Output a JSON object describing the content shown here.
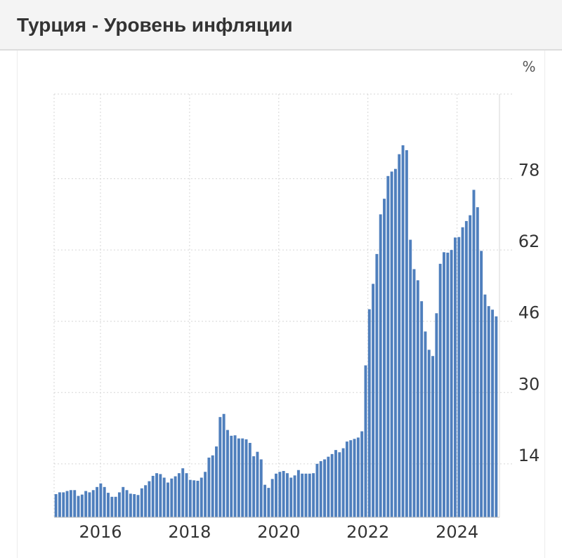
{
  "header": {
    "title": "Турция - Уровень инфляции"
  },
  "chart_data": {
    "type": "bar",
    "unit": "%",
    "color": "#4f7fbd",
    "ylim": [
      2,
      97
    ],
    "y_ticks": [
      14,
      30,
      46,
      62,
      78
    ],
    "x_tick_labels": [
      "2016",
      "2018",
      "2020",
      "2022",
      "2024"
    ],
    "x_tick_positions": [
      2016,
      2018,
      2020,
      2022,
      2024
    ],
    "x_range": [
      2014.96,
      2024.92
    ],
    "start": "2015-01",
    "grid": true,
    "values": [
      7.2,
      7.6,
      7.6,
      7.9,
      8.1,
      8.1,
      6.8,
      7.1,
      7.9,
      7.6,
      8.1,
      8.8,
      9.6,
      8.8,
      7.5,
      6.6,
      6.6,
      7.6,
      8.8,
      8.1,
      7.3,
      7.2,
      7.0,
      8.5,
      9.2,
      10.1,
      11.3,
      11.9,
      11.7,
      10.9,
      9.8,
      10.7,
      11.2,
      11.9,
      13.0,
      11.9,
      10.4,
      10.3,
      10.2,
      10.9,
      12.2,
      15.4,
      15.9,
      17.9,
      24.5,
      25.2,
      21.6,
      20.3,
      20.4,
      19.7,
      19.7,
      19.5,
      18.7,
      15.7,
      16.7,
      15.0,
      9.3,
      8.6,
      10.6,
      11.8,
      12.2,
      12.4,
      11.9,
      10.9,
      11.4,
      12.6,
      11.8,
      11.8,
      11.8,
      11.9,
      14.0,
      14.6,
      15.0,
      15.6,
      16.2,
      17.1,
      16.6,
      17.5,
      19.0,
      19.3,
      19.6,
      19.9,
      21.3,
      36.1,
      48.7,
      54.4,
      61.1,
      70.0,
      73.5,
      78.6,
      79.6,
      80.2,
      83.5,
      85.5,
      84.4,
      64.3,
      57.7,
      55.2,
      50.5,
      43.7,
      39.6,
      38.2,
      47.8,
      58.9,
      61.5,
      61.4,
      62.0,
      64.8,
      64.9,
      67.1,
      68.5,
      69.8,
      75.5,
      71.6,
      61.8,
      52.0,
      49.4,
      48.6,
      47.1
    ]
  }
}
